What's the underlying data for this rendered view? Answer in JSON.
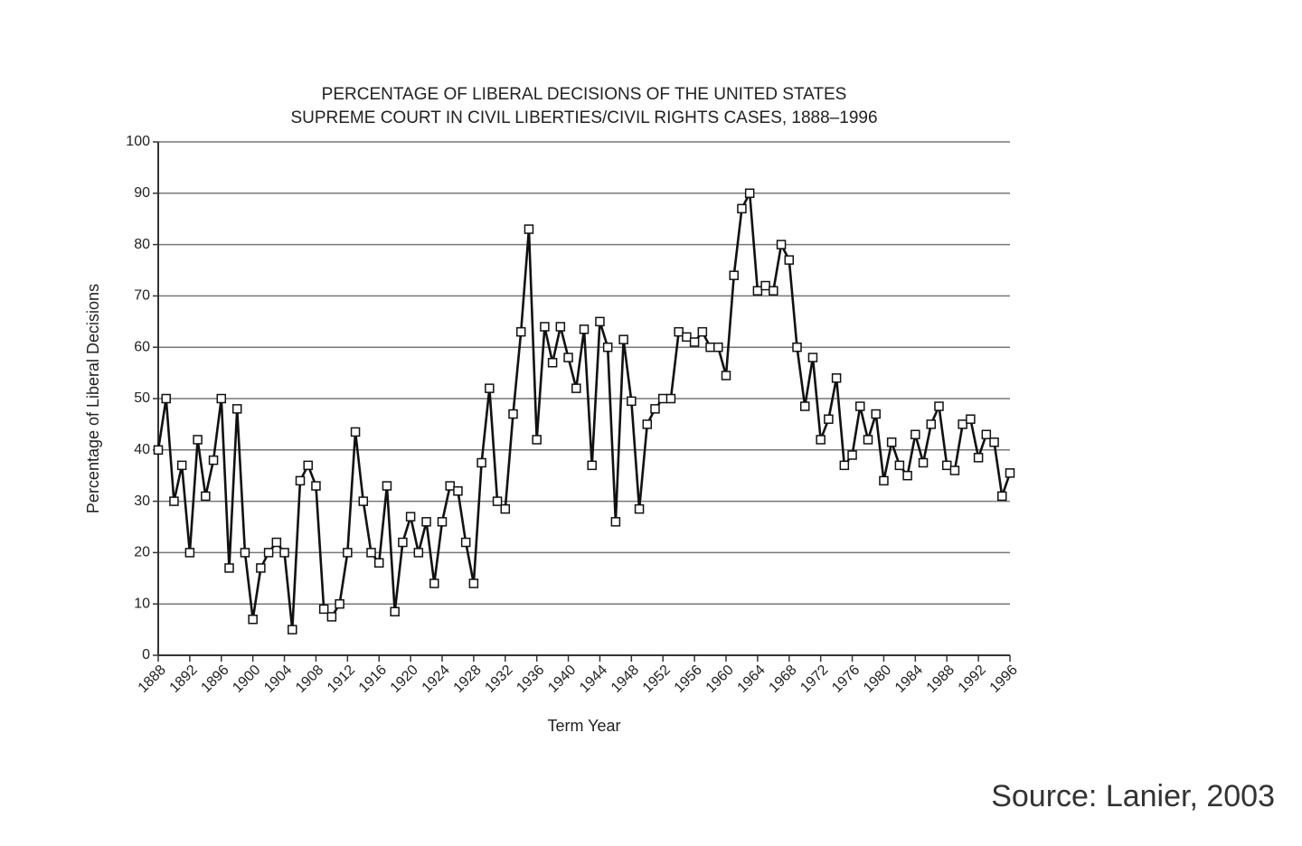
{
  "chart_data": {
    "type": "line",
    "title": [
      "PERCENTAGE OF LIBERAL DECISIONS OF THE UNITED STATES",
      "SUPREME COURT IN CIVIL LIBERTIES/CIVIL RIGHTS CASES, 1888–1996"
    ],
    "xlabel": "Term Year",
    "ylabel": "Percentage of Liberal Decisions",
    "source": "Source: Lanier, 2003",
    "x": [
      1888,
      1889,
      1890,
      1891,
      1892,
      1893,
      1894,
      1895,
      1896,
      1897,
      1898,
      1899,
      1900,
      1901,
      1902,
      1903,
      1904,
      1905,
      1906,
      1907,
      1908,
      1909,
      1910,
      1911,
      1912,
      1913,
      1914,
      1915,
      1916,
      1917,
      1918,
      1919,
      1920,
      1921,
      1922,
      1923,
      1924,
      1925,
      1926,
      1927,
      1928,
      1929,
      1930,
      1931,
      1932,
      1933,
      1934,
      1935,
      1936,
      1937,
      1938,
      1939,
      1940,
      1941,
      1942,
      1943,
      1944,
      1945,
      1946,
      1947,
      1948,
      1949,
      1950,
      1951,
      1952,
      1953,
      1954,
      1955,
      1956,
      1957,
      1958,
      1959,
      1960,
      1961,
      1962,
      1963,
      1964,
      1965,
      1966,
      1967,
      1968,
      1969,
      1970,
      1971,
      1972,
      1973,
      1974,
      1975,
      1976,
      1977,
      1978,
      1979,
      1980,
      1981,
      1982,
      1983,
      1984,
      1985,
      1986,
      1987,
      1988,
      1989,
      1990,
      1991,
      1992,
      1993,
      1994,
      1995,
      1996
    ],
    "values": [
      40,
      50,
      30,
      37,
      20,
      42,
      31,
      38,
      50,
      17,
      48,
      20,
      7,
      17,
      20,
      22,
      20,
      5,
      34,
      37,
      33,
      9,
      7.5,
      10,
      20,
      43.5,
      30,
      20,
      18,
      33,
      8.5,
      22,
      27,
      20,
      26,
      14,
      26,
      33,
      32,
      22,
      14,
      37.5,
      52,
      30,
      28.5,
      47,
      63,
      83,
      42,
      64,
      57,
      64,
      58,
      52,
      63.5,
      37,
      65,
      60,
      26,
      61.5,
      49.5,
      28.5,
      45,
      48,
      50,
      50,
      63,
      62,
      61,
      63,
      60,
      60,
      54.5,
      74,
      87,
      90,
      71,
      72,
      71,
      80,
      77,
      60,
      48.5,
      58,
      42,
      46,
      54,
      37,
      39,
      48.5,
      42,
      47,
      34,
      41.5,
      37,
      35,
      43,
      37.5,
      45,
      48.5,
      37,
      36,
      45,
      46,
      38.5,
      43,
      41.5,
      31,
      35.5
    ],
    "color": "#111111",
    "marker": "square",
    "xlim": [
      1888,
      1996
    ],
    "xticks": [
      1888,
      1892,
      1896,
      1900,
      1904,
      1908,
      1912,
      1916,
      1920,
      1924,
      1928,
      1932,
      1936,
      1940,
      1944,
      1948,
      1952,
      1956,
      1960,
      1964,
      1968,
      1972,
      1976,
      1980,
      1984,
      1988,
      1992,
      1996
    ],
    "ylim": [
      0,
      100
    ],
    "yticks": [
      0,
      10,
      20,
      30,
      40,
      50,
      60,
      70,
      80,
      90,
      100
    ],
    "grid": true
  }
}
